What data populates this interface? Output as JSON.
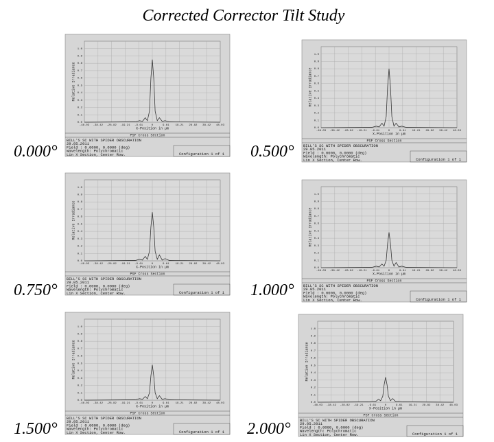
{
  "title": "Corrected Corrector Tilt Study",
  "chart_data": [
    {
      "type": "line",
      "label": "0.000°",
      "title": "PSF Cross Section",
      "xlabel": "X-Position in µm",
      "ylabel": "Relative Irradiance",
      "info": [
        "BILL'S SC WITH SPIDER OBSCURATION",
        "29.05.2011",
        "Field       : 0.0000, 0.0000 (deg)",
        "Wavelength: Polychromatic",
        "Lin X Section, Center Row."
      ],
      "config": "Configuration 1 of 1",
      "x": [
        -48.03,
        -12,
        -9,
        -7,
        -5,
        -3.5,
        -2,
        -1,
        0,
        1,
        2,
        3.5,
        5,
        7,
        9,
        12,
        48.03
      ],
      "values": [
        0,
        0.005,
        0.02,
        0.01,
        0.06,
        0.02,
        0.15,
        0.6,
        0.85,
        0.6,
        0.15,
        0.02,
        0.06,
        0.01,
        0.02,
        0.005,
        0
      ],
      "color": "#333333",
      "xlim": [
        -48.03,
        48.03
      ],
      "ylim": [
        0,
        1.1
      ],
      "xticks": [
        -48.03,
        -38.42,
        -28.82,
        -19.21,
        -9.61,
        0,
        9.61,
        19.21,
        28.82,
        38.42,
        48.03
      ],
      "yticks": [
        {
          "value": 0,
          "label": "0.0"
        },
        0.1,
        0.2,
        0.3,
        0.4,
        0.5,
        0.6,
        0.7,
        0.8,
        0.9,
        {
          "value": 1,
          "label": "1.0"
        }
      ],
      "grid": true
    },
    {
      "type": "line",
      "label": "0.500°",
      "title": "PSF Cross Section",
      "xlabel": "X-Position in µm",
      "ylabel": "Relative Irradiance",
      "info": [
        "BILL'S SC WITH SPIDER OBSCURATION",
        "29.05.2011",
        "Field       : 0.0000, 0.0000 (deg)",
        "Wavelength: Polychromatic",
        "Lin X Section, Center Row."
      ],
      "config": "Configuration 1 of 1",
      "x": [
        -48.03,
        -12,
        -9,
        -7,
        -5,
        -3.5,
        -2,
        -1,
        0,
        1,
        2,
        3.5,
        5,
        7,
        9,
        12,
        48.03
      ],
      "values": [
        0,
        0.005,
        0.02,
        0.01,
        0.06,
        0.02,
        0.15,
        0.56,
        0.8,
        0.56,
        0.15,
        0.02,
        0.06,
        0.01,
        0.02,
        0.005,
        0
      ],
      "color": "#333333",
      "xlim": [
        -48.03,
        48.03
      ],
      "ylim": [
        0,
        1.1
      ],
      "xticks": [
        -48.03,
        -38.42,
        -28.82,
        -19.21,
        -9.61,
        0,
        9.61,
        19.21,
        28.82,
        38.42,
        48.03
      ],
      "yticks": [
        {
          "value": 0,
          "label": "0.0"
        },
        0.1,
        0.2,
        0.3,
        0.4,
        0.5,
        0.6,
        0.7,
        0.8,
        0.9,
        {
          "value": 1,
          "label": "1.0"
        }
      ],
      "grid": true
    },
    {
      "type": "line",
      "label": "0.750°",
      "title": "PSF Cross Section",
      "xlabel": "X-Position in µm",
      "ylabel": "Relative Irradiance",
      "info": [
        "BILL'S SC WITH SPIDER OBSCURATION",
        "29.05.2011",
        "Field       : 0.0000, 0.0000 (deg)",
        "Wavelength: Polychromatic",
        "Lin X Section, Center Row."
      ],
      "config": "Configuration 1 of 1",
      "x": [
        -48.03,
        -12,
        -9,
        -7,
        -5,
        -3.5,
        -2,
        -1,
        0,
        1,
        2,
        3.5,
        5,
        7,
        9,
        12,
        48.03
      ],
      "values": [
        0,
        0.005,
        0.02,
        0.01,
        0.06,
        0.02,
        0.13,
        0.46,
        0.66,
        0.46,
        0.13,
        0.02,
        0.08,
        0.01,
        0.03,
        0.005,
        0
      ],
      "color": "#333333",
      "xlim": [
        -48.03,
        48.03
      ],
      "ylim": [
        0,
        1.1
      ],
      "xticks": [
        -48.03,
        -38.42,
        -28.82,
        -19.21,
        -9.61,
        0,
        9.61,
        19.21,
        28.82,
        38.42,
        48.03
      ],
      "yticks": [
        {
          "value": 0,
          "label": "0.0"
        },
        0.1,
        0.2,
        0.3,
        0.4,
        0.5,
        0.6,
        0.7,
        0.8,
        0.9,
        {
          "value": 1,
          "label": "1.0"
        }
      ],
      "grid": true
    },
    {
      "type": "line",
      "label": "1.000°",
      "title": "PSF Cross Section",
      "xlabel": "X-Position in µm",
      "ylabel": "Relative Irradiance",
      "info": [
        "BILL'S SC WITH SPIDER OBSCURATION",
        "29.05.2011",
        "Field       : 0.0000, 0.0000 (deg)",
        "Wavelength: Polychromatic",
        "Lin X Section, Center Row."
      ],
      "config": "Configuration 1 of 1",
      "x": [
        -48.03,
        -12,
        -9,
        -7,
        -5,
        -3.5,
        -2,
        -1,
        0,
        1,
        2,
        3.5,
        5,
        7,
        9,
        12,
        48.03
      ],
      "values": [
        0,
        0.005,
        0.02,
        0.01,
        0.05,
        0.02,
        0.1,
        0.33,
        0.48,
        0.33,
        0.1,
        0.02,
        0.07,
        0.01,
        0.02,
        0.005,
        0
      ],
      "color": "#333333",
      "xlim": [
        -48.03,
        48.03
      ],
      "ylim": [
        0,
        1.1
      ],
      "xticks": [
        -48.03,
        -38.42,
        -28.82,
        -19.21,
        -9.61,
        0,
        9.61,
        19.21,
        28.82,
        38.42,
        48.03
      ],
      "yticks": [
        {
          "value": 0,
          "label": "0.0"
        },
        0.1,
        0.2,
        0.3,
        0.4,
        0.5,
        0.6,
        0.7,
        0.8,
        0.9,
        {
          "value": 1,
          "label": "1.0"
        }
      ],
      "grid": true
    },
    {
      "type": "line",
      "label": "1.500°",
      "title": "PSF Cross Section",
      "xlabel": "X-Position in µm",
      "ylabel": "Relative Irradiance",
      "info": [
        "BILL'S SC WITH SPIDER OBSCURATION",
        "29.05.2011",
        "Field       : 0.0000, 0.0000 (deg)",
        "Wavelength: Polychromatic",
        "Lin X Section, Center Row."
      ],
      "config": "Configuration 1 of 1",
      "x": [
        -48.03,
        -12,
        -9,
        -7,
        -5,
        -3.5,
        -2,
        -1,
        0,
        1,
        2,
        3.5,
        5,
        7,
        9,
        12,
        48.03
      ],
      "values": [
        0,
        0.005,
        0.02,
        0.01,
        0.05,
        0.02,
        0.1,
        0.33,
        0.48,
        0.33,
        0.1,
        0.02,
        0.06,
        0.01,
        0.02,
        0.005,
        0
      ],
      "color": "#333333",
      "xlim": [
        -48.03,
        48.03
      ],
      "ylim": [
        0,
        1.1
      ],
      "xticks": [
        -48.03,
        -38.42,
        -28.82,
        -19.21,
        -9.61,
        0,
        9.61,
        19.21,
        28.82,
        38.42,
        48.03
      ],
      "yticks": [
        {
          "value": 0,
          "label": "0.0"
        },
        0.1,
        0.2,
        0.3,
        0.4,
        0.5,
        0.6,
        0.7,
        0.8,
        0.9,
        {
          "value": 1,
          "label": "1.0"
        }
      ],
      "grid": true
    },
    {
      "type": "line",
      "label": "2.000°",
      "title": "PSF Cross Section",
      "xlabel": "X-Position in µm",
      "ylabel": "Relative Irradiance",
      "info": [
        "BILL'S SC WITH SPIDER OBSCURATION",
        "29.05.2011",
        "Field       : 0.0000, 0.0000 (deg)",
        "Wavelength: Polychromatic",
        "Lin X Section, Center Row."
      ],
      "config": "Configuration 1 of 1",
      "x": [
        -48.03,
        -12,
        -9,
        -7,
        -5,
        -3.5,
        -2,
        -1,
        0,
        1,
        2,
        3.5,
        5,
        7,
        9,
        12,
        48.03
      ],
      "values": [
        0,
        0.005,
        0.015,
        0.01,
        0.04,
        0.02,
        0.08,
        0.24,
        0.34,
        0.24,
        0.08,
        0.02,
        0.05,
        0.01,
        0.015,
        0.005,
        0
      ],
      "color": "#333333",
      "xlim": [
        -48.03,
        48.03
      ],
      "ylim": [
        0,
        1.1
      ],
      "xticks": [
        -48.03,
        -38.42,
        -28.82,
        -19.21,
        -9.61,
        0,
        9.61,
        19.21,
        28.82,
        38.42,
        48.03
      ],
      "yticks": [
        {
          "value": 0,
          "label": "0.0"
        },
        0.1,
        0.2,
        0.3,
        0.4,
        0.5,
        0.6,
        0.7,
        0.8,
        0.9,
        {
          "value": 1,
          "label": "1.0"
        }
      ],
      "grid": true
    }
  ]
}
